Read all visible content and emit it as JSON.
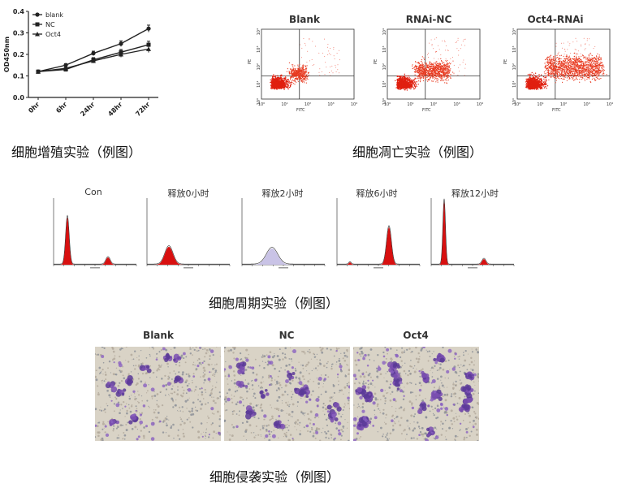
{
  "proliferation": {
    "caption": "细胞增殖实验（例图）",
    "chart_data": {
      "type": "line",
      "x": [
        "0hr",
        "6hr",
        "24hr",
        "48hr",
        "72hr"
      ],
      "ylabel": "OD450nm",
      "ylim": [
        0,
        0.4
      ],
      "yticks": [
        "0.0",
        "0.1",
        "0.2",
        "0.3",
        "0.4"
      ],
      "legend_placement": "top-left",
      "series": [
        {
          "name": "blank",
          "values": [
            0.12,
            0.15,
            0.205,
            0.25,
            0.32
          ]
        },
        {
          "name": "NC",
          "values": [
            0.12,
            0.13,
            0.175,
            0.21,
            0.245
          ]
        },
        {
          "name": "Oct4",
          "values": [
            0.12,
            0.135,
            0.17,
            0.2,
            0.225
          ]
        }
      ]
    }
  },
  "apoptosis": {
    "caption": "细胞凋亡实验（例图）",
    "axis_x": "FITC",
    "axis_y": "PE",
    "ticks": [
      "10⁰",
      "10¹",
      "10²",
      "10³",
      "10⁴"
    ],
    "panels": [
      {
        "title": "Blank",
        "density": 0.25
      },
      {
        "title": "RNAi-NC",
        "density": 0.55
      },
      {
        "title": "Oct4-RNAi",
        "density": 0.95
      }
    ]
  },
  "cell_cycle": {
    "caption": "细胞周期实验（例图）",
    "panels": [
      {
        "title": "Con",
        "profile": "g1-red"
      },
      {
        "title": "释放0小时",
        "profile": "s-red"
      },
      {
        "title": "释放2小时",
        "profile": "s-lilac"
      },
      {
        "title": "释放6小时",
        "profile": "g2-red"
      },
      {
        "title": "释放12小时",
        "profile": "g1-tall"
      }
    ]
  },
  "invasion": {
    "caption": "细胞侵袭实验（例图）",
    "panels": [
      {
        "title": "Blank",
        "density": 0.35
      },
      {
        "title": "NC",
        "density": 0.45
      },
      {
        "title": "Oct4",
        "density": 0.9
      }
    ]
  }
}
